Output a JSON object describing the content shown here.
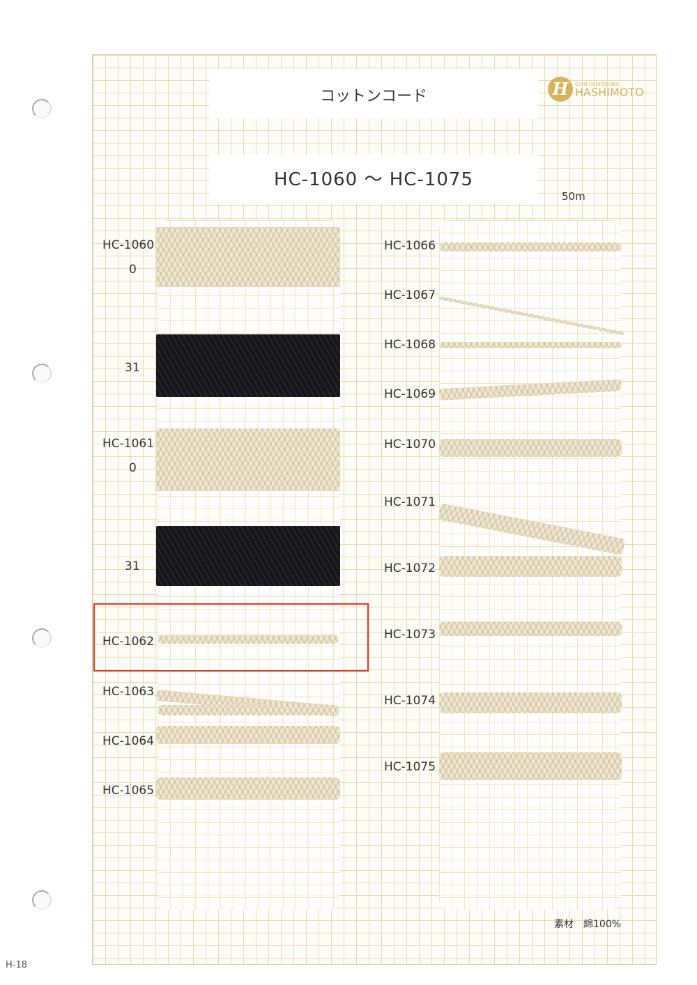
{
  "title": "コットンコード",
  "range": "HC-1060 ～ HC-1075",
  "length": "50m",
  "logo": {
    "small": "cord coordinate",
    "brand": "HASHIMOTO",
    "mark": "H",
    "color": "#d4b35a"
  },
  "material": "素材　綿100%",
  "page": "H-18",
  "left": [
    {
      "code": "HC-1060",
      "color": "0"
    },
    {
      "color": "31"
    },
    {
      "code": "HC-1061",
      "color": "0"
    },
    {
      "color": "31"
    },
    {
      "code": "HC-1062"
    },
    {
      "code": "HC-1063"
    },
    {
      "code": "HC-1064"
    },
    {
      "code": "HC-1065"
    }
  ],
  "right": [
    "HC-1066",
    "HC-1067",
    "HC-1068",
    "HC-1069",
    "HC-1070",
    "HC-1071",
    "HC-1072",
    "HC-1073",
    "HC-1074",
    "HC-1075"
  ],
  "highlight_color": "#e8382a"
}
